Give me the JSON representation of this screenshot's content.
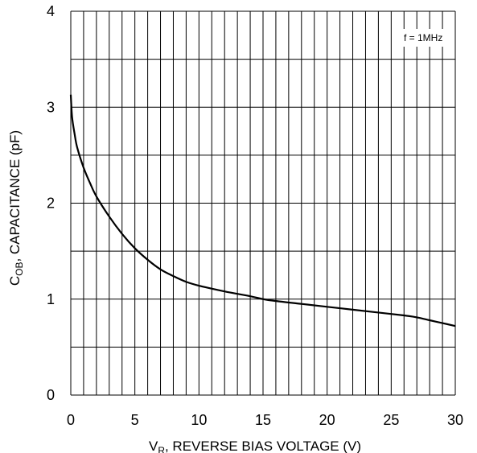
{
  "chart_data": {
    "type": "line",
    "xlabel_main": "V",
    "xlabel_sub": "R",
    "xlabel_rest": ", REVERSE BIAS VOLTAGE (V)",
    "ylabel_main": "C",
    "ylabel_sub": "OB",
    "ylabel_rest": ", CAPACITANCE (pF)",
    "annotation": "f = 1MHz",
    "xlim": [
      0,
      30
    ],
    "ylim": [
      0,
      4
    ],
    "x_ticks": [
      "0",
      "5",
      "10",
      "15",
      "20",
      "25",
      "30"
    ],
    "y_ticks": [
      "0",
      "1",
      "2",
      "3",
      "4"
    ],
    "grid": true,
    "series": [
      {
        "x": [
          0.0,
          0.1,
          0.3,
          0.5,
          1.0,
          1.5,
          2.0,
          3.0,
          4.0,
          5.0,
          6.0,
          7.0,
          8.0,
          9.0,
          10.0,
          12.0,
          14.0,
          15.0,
          16.0,
          18.0,
          20.0,
          22.0,
          24.0,
          26.0,
          27.0,
          28.0,
          29.0,
          30.0
        ],
        "values": [
          3.13,
          2.9,
          2.72,
          2.58,
          2.37,
          2.21,
          2.07,
          1.86,
          1.68,
          1.53,
          1.41,
          1.31,
          1.24,
          1.18,
          1.14,
          1.08,
          1.03,
          1.0,
          0.98,
          0.95,
          0.92,
          0.89,
          0.86,
          0.83,
          0.81,
          0.78,
          0.75,
          0.72
        ]
      }
    ]
  }
}
